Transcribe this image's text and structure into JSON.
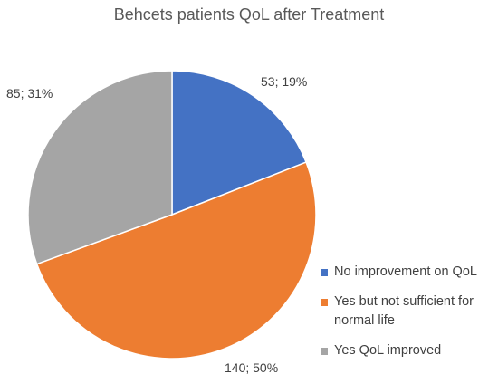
{
  "chart_data": {
    "type": "pie",
    "title": "Behcets patients QoL after Treatment",
    "slices": [
      {
        "name": "No improvement on QoL",
        "value": 53,
        "percent": 19,
        "label": "53; 19%",
        "color": "#4472C4"
      },
      {
        "name": "Yes but not sufficient for normal life",
        "value": 140,
        "percent": 50,
        "label": "140; 50%",
        "color": "#ED7D31"
      },
      {
        "name": "Yes QoL improved",
        "value": 85,
        "percent": 31,
        "label": "85; 31%",
        "color": "#A5A5A5"
      }
    ],
    "legend_position": "right"
  }
}
